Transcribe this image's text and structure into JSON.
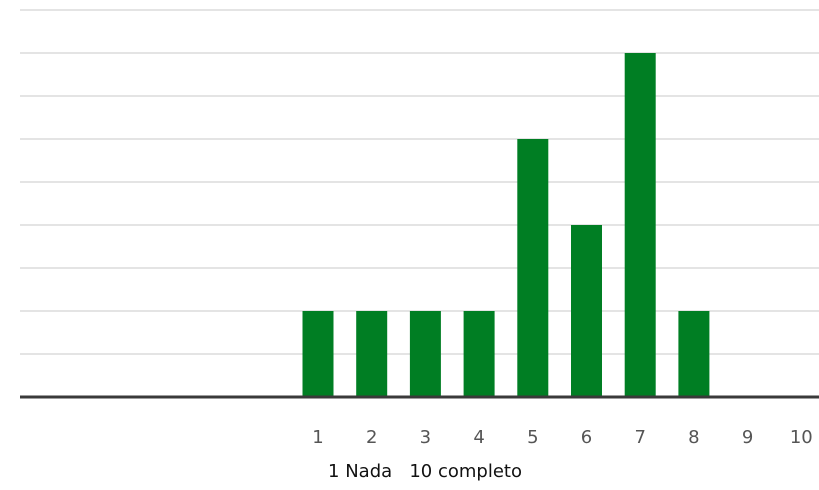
{
  "chart_data": {
    "type": "bar",
    "categories": [
      "1",
      "2",
      "3",
      "4",
      "5",
      "6",
      "7",
      "8",
      "9",
      "10"
    ],
    "values": [
      1,
      1,
      1,
      1,
      3,
      2,
      4,
      1,
      0,
      0
    ],
    "xlabel": "1 Nada   10 completo",
    "ylim": [
      0,
      4.5
    ],
    "grid": true,
    "colors": {
      "bar": "#007e23",
      "gridline": "#c8c8c8",
      "baseline": "#3a3a3a"
    }
  }
}
